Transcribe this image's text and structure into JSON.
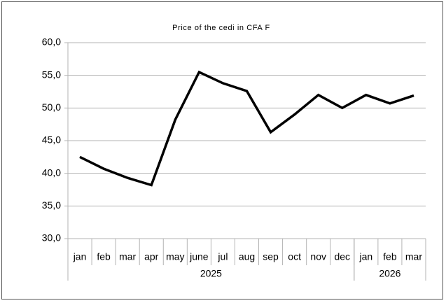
{
  "chart_data": {
    "type": "line",
    "title": "Price of the cedi in CFA F",
    "categories": [
      "jan",
      "feb",
      "mar",
      "apr",
      "may",
      "june",
      "jul",
      "aug",
      "sep",
      "oct",
      "nov",
      "dec",
      "jan",
      "feb",
      "mar"
    ],
    "x_groups": [
      {
        "label": "2025",
        "count": 12
      },
      {
        "label": "2026",
        "count": 3
      }
    ],
    "values": [
      42.5,
      40.7,
      39.3,
      38.2,
      48.2,
      55.5,
      53.8,
      52.6,
      46.3,
      49.0,
      52.0,
      50.0,
      52.0,
      50.7,
      51.9
    ],
    "color": "#000000",
    "ylim": [
      30,
      60
    ],
    "yticks": [
      {
        "value": 30,
        "label": "30,0"
      },
      {
        "value": 35,
        "label": "35,0"
      },
      {
        "value": 40,
        "label": "40,0"
      },
      {
        "value": 45,
        "label": "45,0"
      },
      {
        "value": 50,
        "label": "50,0"
      },
      {
        "value": 55,
        "label": "55,0"
      },
      {
        "value": 60,
        "label": "60,0"
      }
    ],
    "grid": true
  }
}
